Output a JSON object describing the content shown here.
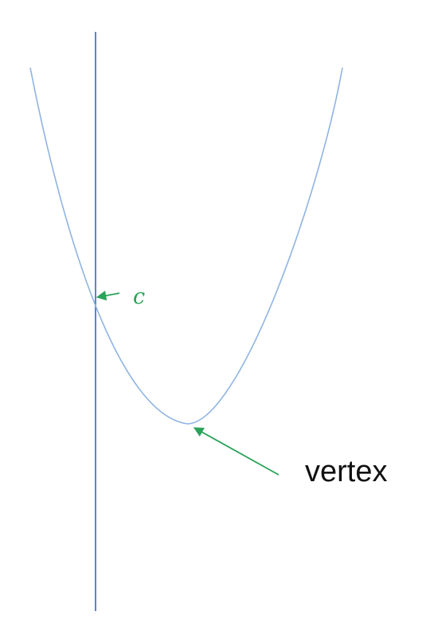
{
  "labels": {
    "c": "c",
    "vertex": "vertex"
  },
  "colors": {
    "axis": "#3a5fcd",
    "curve": "#8fb4e3",
    "annotation": "#2aa35a",
    "vertex_text": "#111111"
  }
}
